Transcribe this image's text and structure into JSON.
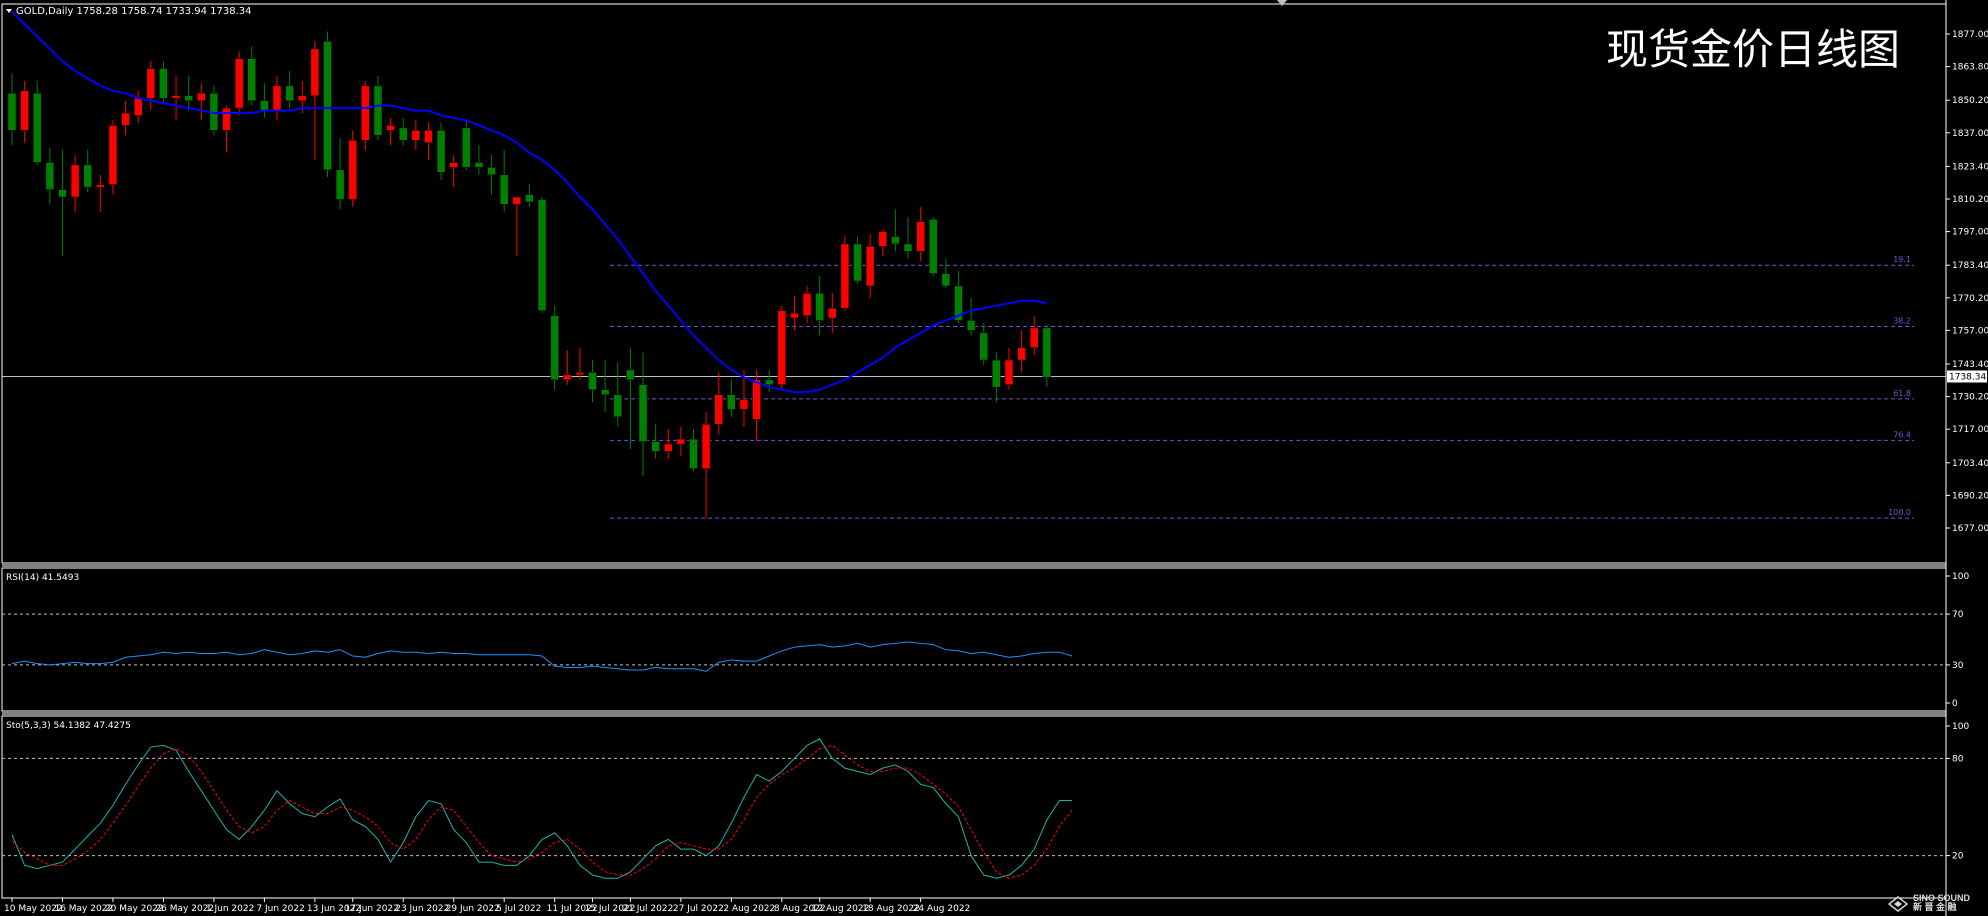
{
  "header": {
    "symbol_info": "GOLD,Daily",
    "ohlc": "1758.28 1758.74 1733.94 1738.34"
  },
  "overlay_title": "现货金价日线图",
  "watermark": {
    "line1": "SINO SOUND",
    "line2": "新 晋 金 融"
  },
  "colors": {
    "bull": "#ff0000",
    "bear": "#008000",
    "ma": "#0000ff",
    "rsi": "#1e90ff",
    "sto_main": "#20b2aa",
    "sto_signal": "#ff0000",
    "fib": "#6a5acd",
    "grid": "#c0c0c0"
  },
  "chart_data": [
    {
      "type": "candlestick",
      "title": "GOLD,Daily",
      "price_axis_ticks": [
        "1877.00",
        "1863.80",
        "1850.20",
        "1837.00",
        "1823.40",
        "1810.20",
        "1797.00",
        "1783.40",
        "1770.20",
        "1757.00",
        "1743.40",
        "1730.20",
        "1717.00",
        "1703.40",
        "1690.20",
        "1677.00"
      ],
      "ylim": [
        1677,
        1880
      ],
      "current_price": "1738.34",
      "date_labels": [
        "10 May 2022",
        "16 May 2022",
        "20 May 2022",
        "26 May 2022",
        "1 Jun 2022",
        "7 Jun 2022",
        "13 Jun 2022",
        "17 Jun 2022",
        "23 Jun 2022",
        "29 Jun 2022",
        "5 Jul 2022",
        "11 Jul 2022",
        "15 Jul 2022",
        "21 Jul 2022",
        "27 Jul 2022",
        "2 Aug 2022",
        "8 Aug 2022",
        "12 Aug 2022",
        "18 Aug 2022",
        "24 Aug 2022"
      ],
      "candles": [
        {
          "o": 1853,
          "h": 1861,
          "l": 1832,
          "c": 1838
        },
        {
          "o": 1838,
          "h": 1858,
          "l": 1833,
          "c": 1854
        },
        {
          "o": 1853,
          "h": 1858,
          "l": 1824,
          "c": 1825
        },
        {
          "o": 1825,
          "h": 1831,
          "l": 1808,
          "c": 1814
        },
        {
          "o": 1814,
          "h": 1830,
          "l": 1787,
          "c": 1811
        },
        {
          "o": 1811,
          "h": 1828,
          "l": 1805,
          "c": 1824
        },
        {
          "o": 1824,
          "h": 1830,
          "l": 1813,
          "c": 1815
        },
        {
          "o": 1815,
          "h": 1820,
          "l": 1805,
          "c": 1816
        },
        {
          "o": 1816,
          "h": 1842,
          "l": 1812,
          "c": 1840
        },
        {
          "o": 1840,
          "h": 1850,
          "l": 1836,
          "c": 1845
        },
        {
          "o": 1844,
          "h": 1854,
          "l": 1841,
          "c": 1851
        },
        {
          "o": 1851,
          "h": 1866,
          "l": 1846,
          "c": 1863
        },
        {
          "o": 1863,
          "h": 1866,
          "l": 1849,
          "c": 1851
        },
        {
          "o": 1851,
          "h": 1860,
          "l": 1842,
          "c": 1852
        },
        {
          "o": 1852,
          "h": 1860,
          "l": 1846,
          "c": 1850
        },
        {
          "o": 1850,
          "h": 1857,
          "l": 1842,
          "c": 1853
        },
        {
          "o": 1853,
          "h": 1856,
          "l": 1836,
          "c": 1838
        },
        {
          "o": 1838,
          "h": 1848,
          "l": 1829,
          "c": 1847
        },
        {
          "o": 1847,
          "h": 1870,
          "l": 1844,
          "c": 1867
        },
        {
          "o": 1867,
          "h": 1872,
          "l": 1848,
          "c": 1850
        },
        {
          "o": 1850,
          "h": 1857,
          "l": 1843,
          "c": 1846
        },
        {
          "o": 1846,
          "h": 1860,
          "l": 1842,
          "c": 1856
        },
        {
          "o": 1856,
          "h": 1862,
          "l": 1847,
          "c": 1850
        },
        {
          "o": 1850,
          "h": 1858,
          "l": 1845,
          "c": 1852
        },
        {
          "o": 1852,
          "h": 1874,
          "l": 1826,
          "c": 1871
        },
        {
          "o": 1874,
          "h": 1878,
          "l": 1819,
          "c": 1822
        },
        {
          "o": 1822,
          "h": 1835,
          "l": 1806,
          "c": 1810
        },
        {
          "o": 1810,
          "h": 1838,
          "l": 1807,
          "c": 1834
        },
        {
          "o": 1834,
          "h": 1858,
          "l": 1830,
          "c": 1856
        },
        {
          "o": 1856,
          "h": 1860,
          "l": 1834,
          "c": 1836
        },
        {
          "o": 1838,
          "h": 1843,
          "l": 1832,
          "c": 1840
        },
        {
          "o": 1839,
          "h": 1843,
          "l": 1832,
          "c": 1834
        },
        {
          "o": 1834,
          "h": 1842,
          "l": 1830,
          "c": 1838
        },
        {
          "o": 1833,
          "h": 1841,
          "l": 1826,
          "c": 1838
        },
        {
          "o": 1838,
          "h": 1841,
          "l": 1818,
          "c": 1821
        },
        {
          "o": 1823,
          "h": 1828,
          "l": 1815,
          "c": 1825
        },
        {
          "o": 1839,
          "h": 1842,
          "l": 1822,
          "c": 1823
        },
        {
          "o": 1825,
          "h": 1832,
          "l": 1820,
          "c": 1823
        },
        {
          "o": 1823,
          "h": 1828,
          "l": 1812,
          "c": 1820
        },
        {
          "o": 1820,
          "h": 1830,
          "l": 1805,
          "c": 1808
        },
        {
          "o": 1808,
          "h": 1811,
          "l": 1787,
          "c": 1811
        },
        {
          "o": 1812,
          "h": 1816,
          "l": 1807,
          "c": 1809
        },
        {
          "o": 1810,
          "h": 1811,
          "l": 1764,
          "c": 1765
        },
        {
          "o": 1763,
          "h": 1767,
          "l": 1733,
          "c": 1737
        },
        {
          "o": 1737,
          "h": 1749,
          "l": 1735,
          "c": 1739
        },
        {
          "o": 1739,
          "h": 1750,
          "l": 1737,
          "c": 1740
        },
        {
          "o": 1740,
          "h": 1745,
          "l": 1728,
          "c": 1733
        },
        {
          "o": 1733,
          "h": 1745,
          "l": 1724,
          "c": 1731
        },
        {
          "o": 1731,
          "h": 1744,
          "l": 1718,
          "c": 1722
        },
        {
          "o": 1741,
          "h": 1750,
          "l": 1709,
          "c": 1737
        },
        {
          "o": 1735,
          "h": 1748,
          "l": 1698,
          "c": 1712
        },
        {
          "o": 1712,
          "h": 1719,
          "l": 1705,
          "c": 1708
        },
        {
          "o": 1708,
          "h": 1717,
          "l": 1705,
          "c": 1711
        },
        {
          "o": 1711,
          "h": 1718,
          "l": 1706,
          "c": 1713
        },
        {
          "o": 1713,
          "h": 1717,
          "l": 1700,
          "c": 1701
        },
        {
          "o": 1701,
          "h": 1724,
          "l": 1681,
          "c": 1719
        },
        {
          "o": 1719,
          "h": 1740,
          "l": 1715,
          "c": 1731
        },
        {
          "o": 1731,
          "h": 1737,
          "l": 1722,
          "c": 1725
        },
        {
          "o": 1725,
          "h": 1741,
          "l": 1718,
          "c": 1729
        },
        {
          "o": 1721,
          "h": 1741,
          "l": 1712,
          "c": 1737
        },
        {
          "o": 1737,
          "h": 1741,
          "l": 1732,
          "c": 1735
        },
        {
          "o": 1735,
          "h": 1767,
          "l": 1733,
          "c": 1765
        },
        {
          "o": 1762,
          "h": 1771,
          "l": 1757,
          "c": 1764
        },
        {
          "o": 1763,
          "h": 1775,
          "l": 1760,
          "c": 1772
        },
        {
          "o": 1772,
          "h": 1779,
          "l": 1755,
          "c": 1761
        },
        {
          "o": 1762,
          "h": 1772,
          "l": 1756,
          "c": 1766
        },
        {
          "o": 1766,
          "h": 1795,
          "l": 1765,
          "c": 1792
        },
        {
          "o": 1792,
          "h": 1795,
          "l": 1776,
          "c": 1777
        },
        {
          "o": 1775,
          "h": 1796,
          "l": 1770,
          "c": 1791
        },
        {
          "o": 1791,
          "h": 1798,
          "l": 1787,
          "c": 1797
        },
        {
          "o": 1795,
          "h": 1806,
          "l": 1789,
          "c": 1792
        },
        {
          "o": 1792,
          "h": 1803,
          "l": 1786,
          "c": 1789
        },
        {
          "o": 1789,
          "h": 1807,
          "l": 1785,
          "c": 1801
        },
        {
          "o": 1802,
          "h": 1803,
          "l": 1779,
          "c": 1780
        },
        {
          "o": 1780,
          "h": 1786,
          "l": 1774,
          "c": 1775
        },
        {
          "o": 1775,
          "h": 1781,
          "l": 1760,
          "c": 1761
        },
        {
          "o": 1761,
          "h": 1770,
          "l": 1755,
          "c": 1757
        },
        {
          "o": 1756,
          "h": 1760,
          "l": 1743,
          "c": 1745
        },
        {
          "o": 1745,
          "h": 1748,
          "l": 1728,
          "c": 1734
        },
        {
          "o": 1735,
          "h": 1750,
          "l": 1733,
          "c": 1745
        },
        {
          "o": 1745,
          "h": 1757,
          "l": 1740,
          "c": 1750
        },
        {
          "o": 1750,
          "h": 1763,
          "l": 1747,
          "c": 1758
        },
        {
          "o": 1758,
          "h": 1759,
          "l": 1734,
          "c": 1738
        }
      ],
      "ma": [
        1886,
        1881,
        1876,
        1871,
        1866,
        1862,
        1859,
        1856,
        1854,
        1853,
        1851,
        1850,
        1849,
        1848,
        1847,
        1846,
        1845,
        1845,
        1845,
        1845,
        1846,
        1846,
        1846,
        1847,
        1847,
        1847,
        1847,
        1847,
        1847,
        1848,
        1848,
        1847,
        1846,
        1846,
        1844,
        1843,
        1842,
        1840,
        1838,
        1836,
        1833,
        1829,
        1826,
        1822,
        1817,
        1811,
        1806,
        1800,
        1794,
        1787,
        1780,
        1773,
        1767,
        1761,
        1755,
        1750,
        1745,
        1741,
        1738,
        1736,
        1734,
        1733,
        1732,
        1732,
        1733,
        1735,
        1737,
        1740,
        1743,
        1746,
        1750,
        1753,
        1756,
        1759,
        1761,
        1763,
        1765,
        1766,
        1767,
        1768,
        1769,
        1769,
        1768
      ],
      "fib_levels": [
        {
          "label": "19.1",
          "price": 1783.4
        },
        {
          "label": "38.2",
          "price": 1758.6
        },
        {
          "label": "61.8",
          "price": 1729.3
        },
        {
          "label": "76.4",
          "price": 1712.5
        },
        {
          "label": "100.0",
          "price": 1681.0
        }
      ]
    },
    {
      "type": "line",
      "title": "RSI(14) 41.5493",
      "y_ticks": [
        "100",
        "70",
        "30",
        "0"
      ],
      "ylim": [
        0,
        100
      ],
      "levels": [
        70,
        30
      ],
      "series": [
        {
          "values": [
            31,
            33,
            31,
            30,
            31,
            32,
            31,
            31,
            32,
            36,
            37,
            38,
            40,
            39,
            40,
            39,
            39,
            40,
            38,
            39,
            42,
            40,
            38,
            39,
            41,
            40,
            42,
            37,
            36,
            39,
            41,
            40,
            40,
            39,
            40,
            39,
            39,
            38,
            38,
            38,
            38,
            38,
            37,
            29,
            28,
            28,
            29,
            28,
            27,
            26,
            26,
            28,
            27,
            27,
            27,
            25,
            32,
            34,
            33,
            33,
            37,
            41,
            44,
            45,
            46,
            44,
            45,
            47,
            44,
            46,
            47,
            48,
            47,
            46,
            42,
            41,
            39,
            40,
            38,
            36,
            37,
            39,
            40,
            40,
            37
          ]
        }
      ]
    },
    {
      "type": "line",
      "title": "Sto(5,3,3) 54.1382 47.4275",
      "y_ticks": [
        "100",
        "80",
        "20"
      ],
      "ylim": [
        0,
        100
      ],
      "levels": [
        80,
        20
      ],
      "series": [
        {
          "values": [
            33,
            14,
            12,
            14,
            16,
            24,
            32,
            40,
            51,
            64,
            76,
            87,
            88,
            85,
            72,
            60,
            48,
            36,
            30,
            38,
            48,
            60,
            52,
            46,
            44,
            50,
            55,
            42,
            38,
            30,
            16,
            28,
            44,
            54,
            52,
            36,
            28,
            16,
            16,
            14,
            14,
            20,
            30,
            34,
            26,
            14,
            8,
            6,
            6,
            10,
            18,
            26,
            30,
            24,
            24,
            20,
            26,
            40,
            56,
            70,
            66,
            72,
            80,
            88,
            92,
            80,
            74,
            72,
            70,
            74,
            76,
            72,
            64,
            62,
            52,
            44,
            20,
            8,
            6,
            8,
            14,
            24,
            42,
            54,
            54
          ]
        },
        {
          "values": [
            29,
            22,
            18,
            14,
            14,
            18,
            23,
            30,
            40,
            51,
            63,
            74,
            83,
            86,
            82,
            72,
            60,
            48,
            38,
            34,
            38,
            48,
            54,
            50,
            46,
            46,
            50,
            48,
            44,
            38,
            28,
            24,
            30,
            42,
            50,
            48,
            38,
            28,
            20,
            18,
            16,
            18,
            22,
            28,
            30,
            24,
            16,
            10,
            8,
            8,
            12,
            18,
            26,
            28,
            26,
            24,
            24,
            30,
            42,
            56,
            64,
            70,
            74,
            80,
            86,
            88,
            82,
            76,
            72,
            72,
            74,
            74,
            70,
            64,
            58,
            50,
            36,
            22,
            10,
            6,
            8,
            14,
            24,
            38,
            48
          ]
        }
      ]
    }
  ]
}
